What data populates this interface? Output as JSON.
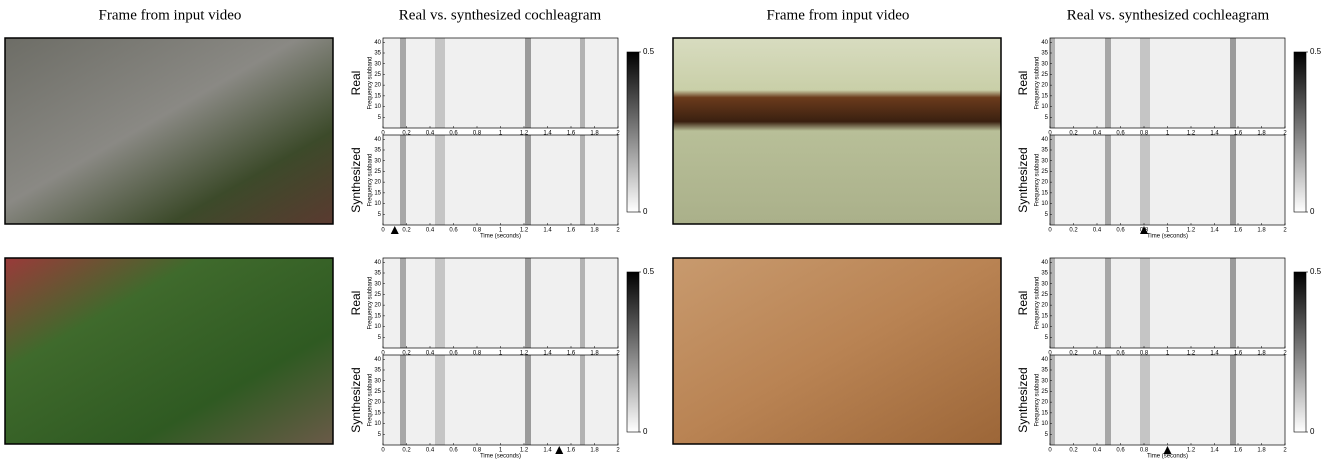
{
  "columns": [
    {
      "frame_header": "Frame from input video",
      "cochleagram_header": "Real vs. synthesized cochleagram"
    },
    {
      "frame_header": "Frame from input video",
      "cochleagram_header": "Real vs. synthesized cochleagram"
    }
  ],
  "axes": {
    "xlabel": "Time (seconds)",
    "ylabel": "Frequency subband",
    "real_label": "Real",
    "synth_label": "Synthesized",
    "xlim": [
      0,
      2
    ],
    "ylim": [
      0,
      42
    ],
    "xticks": [
      0,
      0.2,
      0.4,
      0.6,
      0.8,
      1,
      1.2,
      1.4,
      1.6,
      1.8,
      2
    ],
    "yticks": [
      5,
      10,
      15,
      20,
      25,
      30,
      35,
      40
    ],
    "colorbar_lim": [
      0,
      0.5
    ],
    "colorbar_ticks": [
      0,
      0.5
    ]
  },
  "examples": [
    {
      "marker_time": 0.1
    },
    {
      "marker_time": 0.8
    },
    {
      "marker_time": 1.5
    },
    {
      "marker_time": 1.0
    }
  ]
}
